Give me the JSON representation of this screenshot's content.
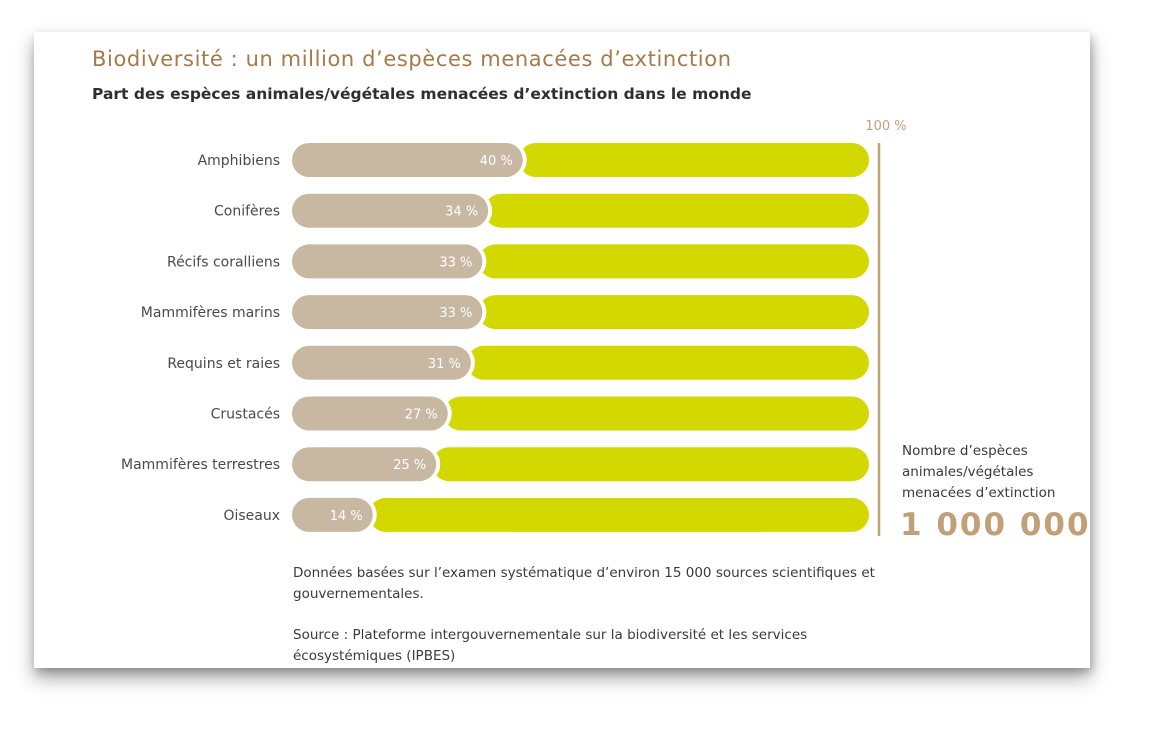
{
  "title": "Biodiversité : un million d’espèces menacées d’extinction",
  "subtitle": "Part des espèces animales/végétales menacées d’extinction dans le monde",
  "chart_data": {
    "type": "bar",
    "orientation": "horizontal",
    "stacked_to": 100,
    "categories": [
      "Amphibiens",
      "Conifères",
      "Récifs coralliens",
      "Mammifères marins",
      "Requins et raies",
      "Crustacés",
      "Mammifères terrestres",
      "Oiseaux"
    ],
    "values": [
      40,
      34,
      33,
      33,
      31,
      27,
      25,
      14
    ],
    "value_labels": [
      "40 %",
      "34 %",
      "33 %",
      "33 %",
      "31 %",
      "27 %",
      "25 %",
      "14 %"
    ],
    "max_label": "100 %",
    "xlim": [
      0,
      100
    ],
    "colors": {
      "threatened": "#c8b8a2",
      "remainder": "#d2d800",
      "axis": "#c1a078",
      "category_text": "#4a4a4a",
      "value_text": "#ffffff"
    }
  },
  "side_panel": {
    "label": "Nombre d’espèces animales/végétales menacées d’extinction",
    "number": "1 000 000"
  },
  "notes": {
    "data_note": "Données basées sur l’examen systématique d’environ 15 000 sources scientifiques et gouvernementales.",
    "source": "Source : Plateforme intergouvernementale sur la biodiversité et les services écosystémiques (IPBES)"
  }
}
